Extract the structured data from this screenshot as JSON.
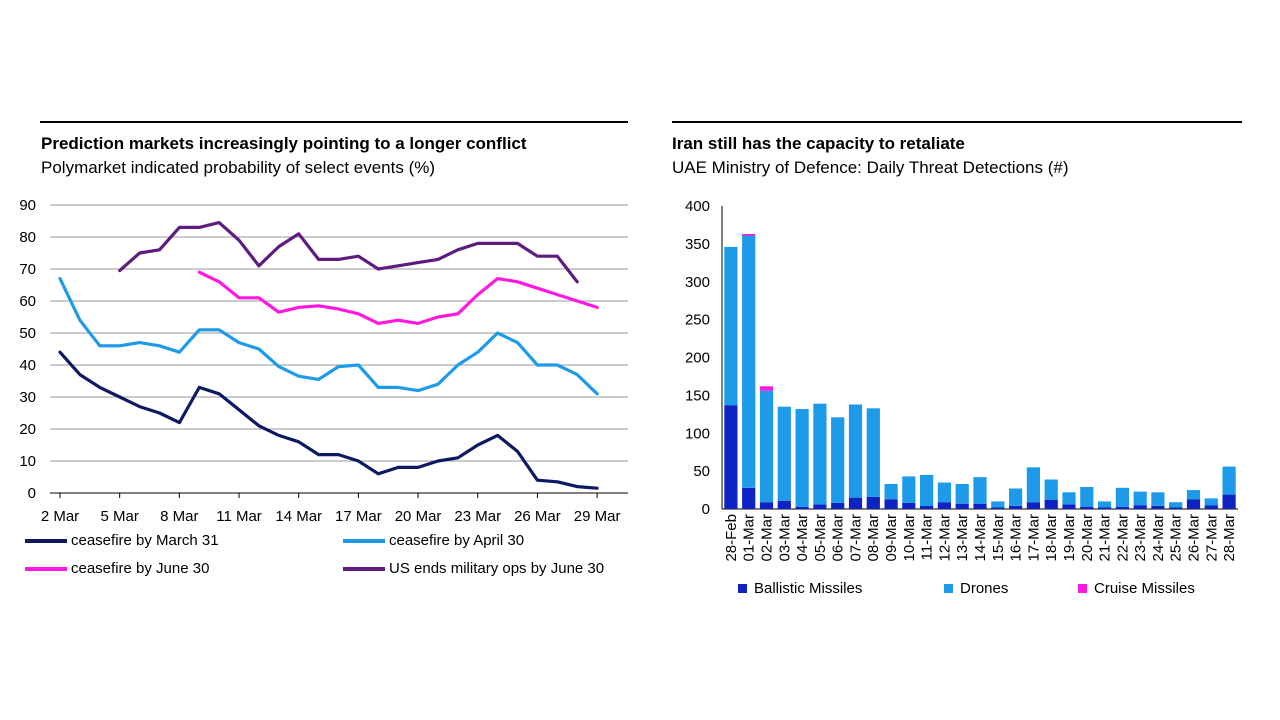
{
  "chart_data": [
    {
      "type": "line",
      "title": "Prediction markets increasingly pointing to a longer conflict",
      "subtitle": "Polymarket indicated probability of select events (%)",
      "xlabel": "",
      "ylabel": "",
      "ylim": [
        0,
        90
      ],
      "yticks": [
        0,
        10,
        20,
        30,
        40,
        50,
        60,
        70,
        80,
        90
      ],
      "x_tick_labels": [
        "2 Mar",
        "5 Mar",
        "8 Mar",
        "11 Mar",
        "14 Mar",
        "17 Mar",
        "20 Mar",
        "23 Mar",
        "26 Mar",
        "29 Mar"
      ],
      "x_days": [
        2,
        3,
        4,
        5,
        6,
        7,
        8,
        9,
        10,
        11,
        12,
        13,
        14,
        15,
        16,
        17,
        18,
        19,
        20,
        21,
        22,
        23,
        24,
        25,
        26,
        27,
        28,
        29,
        30
      ],
      "series": [
        {
          "name": "ceasefire by March 31",
          "color": "#0d1a63",
          "values": [
            44,
            37,
            33,
            30,
            27,
            25,
            22,
            33,
            31,
            26,
            21,
            18,
            16,
            12,
            12,
            10,
            6,
            8,
            8,
            10,
            11,
            15,
            18,
            13,
            4,
            3.5,
            2,
            1.5,
            null
          ]
        },
        {
          "name": "ceasefire by April 30",
          "color": "#1e9be8",
          "values": [
            67,
            54,
            46,
            46,
            47,
            46,
            44,
            51,
            51,
            47,
            45,
            39.5,
            36.5,
            35.5,
            39.5,
            40,
            33,
            33,
            32,
            34,
            40,
            44,
            50,
            47,
            40,
            40,
            37,
            31,
            null
          ]
        },
        {
          "name": "ceasefire by June 30",
          "color": "#ff19e0",
          "values": [
            null,
            null,
            null,
            null,
            null,
            null,
            null,
            69,
            66,
            61,
            61,
            56.5,
            58,
            58.5,
            57.5,
            56,
            53,
            54,
            53,
            55,
            56,
            62,
            67,
            66,
            64,
            62,
            60,
            58,
            null
          ]
        },
        {
          "name": "US ends military ops by June 30",
          "color": "#5e1b80",
          "values": [
            null,
            null,
            null,
            69.5,
            75,
            76,
            83,
            83,
            84.5,
            79,
            71,
            77,
            81,
            73,
            73,
            74,
            70,
            71,
            72,
            73,
            76,
            78,
            78,
            78,
            74,
            74,
            66,
            null,
            null
          ]
        }
      ]
    },
    {
      "type": "bar",
      "stacked": true,
      "title": "Iran still has the capacity to retaliate",
      "subtitle": "UAE Ministry of Defence: Daily Threat Detections (#)",
      "xlabel": "",
      "ylabel": "",
      "ylim": [
        0,
        400
      ],
      "yticks": [
        0,
        50,
        100,
        150,
        200,
        250,
        300,
        350,
        400
      ],
      "categories": [
        "28-Feb",
        "01-Mar",
        "02-Mar",
        "03-Mar",
        "04-Mar",
        "05-Mar",
        "06-Mar",
        "07-Mar",
        "08-Mar",
        "09-Mar",
        "10-Mar",
        "11-Mar",
        "12-Mar",
        "13-Mar",
        "14-Mar",
        "15-Mar",
        "16-Mar",
        "17-Mar",
        "18-Mar",
        "19-Mar",
        "20-Mar",
        "21-Mar",
        "22-Mar",
        "23-Mar",
        "24-Mar",
        "25-Mar",
        "26-Mar",
        "27-Mar",
        "28-Mar"
      ],
      "series": [
        {
          "name": "Ballistic Missiles",
          "color": "#0e23c2",
          "values": [
            137,
            28,
            9,
            11,
            3,
            6,
            8,
            15,
            16,
            13,
            8,
            4,
            9,
            7,
            7,
            2,
            4,
            9,
            12,
            6,
            3,
            2,
            3,
            5,
            4,
            2,
            13,
            5,
            19
          ]
        },
        {
          "name": "Drones",
          "color": "#1e9be8",
          "values": [
            209,
            333,
            147,
            124,
            129,
            133,
            113,
            123,
            117,
            20,
            35,
            41,
            26,
            26,
            35,
            8,
            23,
            46,
            27,
            16,
            26,
            8,
            25,
            18,
            18,
            7,
            12,
            9,
            37
          ]
        },
        {
          "name": "Cruise Missiles",
          "color": "#ff19e0",
          "values": [
            0,
            2,
            6,
            0,
            0,
            0,
            0,
            0,
            0,
            0,
            0,
            0,
            0,
            0,
            0,
            0,
            0,
            0,
            0,
            0,
            0,
            0,
            0,
            0,
            0,
            0,
            0,
            0,
            0
          ]
        }
      ]
    }
  ]
}
